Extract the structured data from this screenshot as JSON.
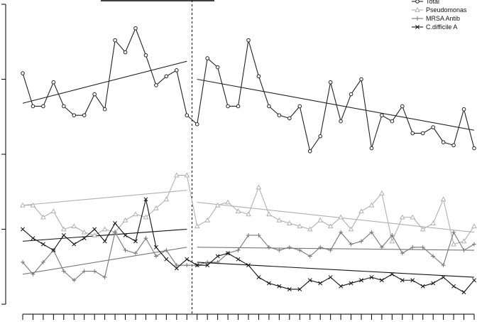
{
  "chart_data": {
    "type": "line",
    "title": "",
    "xlabel": "",
    "ylabel": "",
    "legend": {
      "placement": "top-right",
      "entries": [
        "Total",
        "Pseudomonas",
        "MRSA Antib",
        "C.difficile A"
      ]
    },
    "intervention_index": 16.5,
    "ylim": [
      0,
      100
    ],
    "series": [
      {
        "name": "Total",
        "color": "#222222",
        "marker": "circle",
        "values": [
          77,
          66,
          66,
          74,
          66,
          63,
          63,
          70,
          65,
          88,
          84,
          92,
          83,
          73,
          76,
          78,
          63,
          60,
          82,
          79,
          66,
          66,
          88,
          76,
          66,
          63,
          62,
          66,
          51,
          56,
          74,
          61,
          70,
          75,
          52,
          63,
          61,
          66,
          57,
          57,
          59,
          54,
          53,
          65,
          52
        ],
        "trend": [
          [
            0,
            67
          ],
          [
            16,
            81
          ]
        ],
        "trend2": [
          [
            17,
            75
          ],
          [
            44,
            58
          ]
        ]
      },
      {
        "name": "Pseudomonas",
        "color": "#b0b0b0",
        "marker": "triangle",
        "values": [
          33,
          33,
          29,
          31,
          25,
          26,
          24,
          23,
          25,
          24,
          28,
          30,
          29,
          32,
          35,
          43,
          43,
          26,
          28,
          33,
          34,
          31,
          30,
          39,
          30,
          28,
          27,
          26,
          25,
          28,
          26,
          29,
          25,
          31,
          33,
          37,
          21,
          29,
          29,
          25,
          27,
          35,
          20,
          21,
          26
        ],
        "trend": [
          [
            0,
            33
          ],
          [
            16,
            38
          ]
        ],
        "trend2": [
          [
            17,
            34
          ],
          [
            44,
            24
          ]
        ]
      },
      {
        "name": "MRSA Antib",
        "color": "#777777",
        "marker": "plus",
        "values": [
          14,
          10,
          14,
          18,
          11,
          8,
          11,
          11,
          9,
          24,
          18,
          17,
          22,
          16,
          18,
          13,
          13,
          13,
          14,
          14,
          17,
          18,
          23,
          23,
          19,
          18,
          19,
          18,
          16,
          19,
          18,
          24,
          20,
          21,
          24,
          19,
          23,
          17,
          19,
          19,
          16,
          13,
          24,
          18,
          20
        ],
        "trend": [
          [
            0,
            10
          ],
          [
            16,
            19
          ]
        ],
        "trend2": [
          [
            17,
            19
          ],
          [
            44,
            18
          ]
        ]
      },
      {
        "name": "C.difficile A",
        "color": "#111111",
        "marker": "cross",
        "values": [
          25,
          22,
          20,
          18,
          23,
          20,
          22,
          25,
          21,
          27,
          23,
          21,
          35,
          19,
          15,
          12,
          15,
          13,
          13,
          16,
          17,
          15,
          13,
          9,
          7,
          6,
          5,
          5,
          8,
          7,
          9,
          6,
          7,
          8,
          9,
          8,
          10,
          8,
          8,
          6,
          7,
          9,
          6,
          4,
          8
        ],
        "trend": [
          [
            0,
            21
          ],
          [
            16,
            25
          ]
        ],
        "trend2": [
          [
            17,
            14
          ],
          [
            44,
            9
          ]
        ]
      }
    ]
  }
}
